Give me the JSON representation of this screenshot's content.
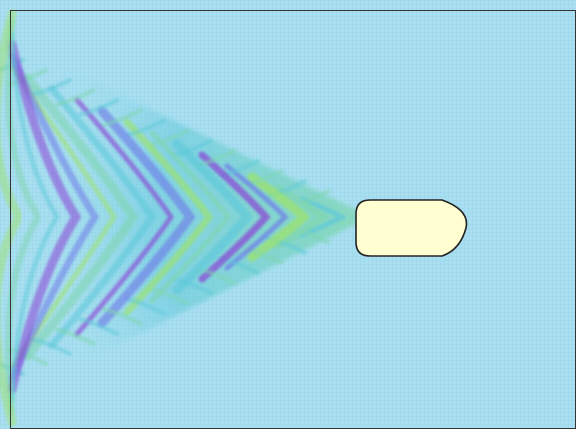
{
  "scene": {
    "field_color": "#a9dff0",
    "mesh_color": "#8fd0e6",
    "wake_colors": [
      "#5fc9d9",
      "#7fd6b0",
      "#9ee36a",
      "#6f7ce8",
      "#8a3fd6"
    ],
    "hull_fill": "#ffffd1",
    "hull_stroke": "#222222",
    "border_color": "#333333"
  }
}
